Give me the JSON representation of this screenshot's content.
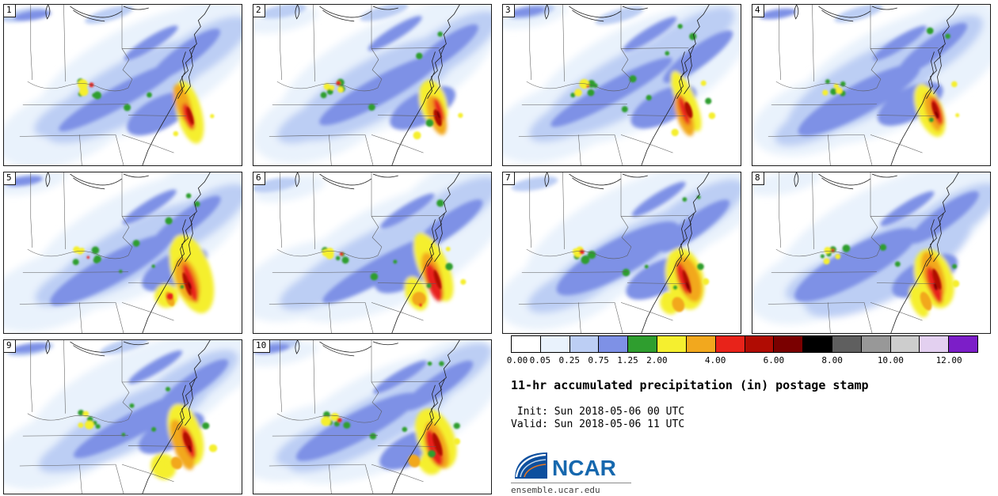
{
  "title": "11-hr accumulated precipitation (in) postage stamp",
  "init_line": " Init: Sun 2018-05-06 00 UTC",
  "valid_line": "Valid: Sun 2018-05-06 11 UTC",
  "footer": {
    "logo_text": "NCAR",
    "site": "ensemble.ucar.edu"
  },
  "panels": [
    {
      "member": "1"
    },
    {
      "member": "2"
    },
    {
      "member": "3"
    },
    {
      "member": "4"
    },
    {
      "member": "5"
    },
    {
      "member": "6"
    },
    {
      "member": "7"
    },
    {
      "member": "8"
    },
    {
      "member": "9"
    },
    {
      "member": "10"
    }
  ],
  "colorbar": {
    "segments": [
      "#ffffff",
      "#e9f2fc",
      "#bccef4",
      "#7e91e6",
      "#2f9e2f",
      "#f5ef2f",
      "#f2a81e",
      "#e8231a",
      "#b00c03",
      "#7a0000",
      "#000000",
      "#5f5f5f",
      "#989898",
      "#cdcdcd",
      "#e3d0f0",
      "#7c1ec8"
    ],
    "ticks": [
      {
        "label": "0.00",
        "boundary": 0
      },
      {
        "label": "0.05",
        "boundary": 1
      },
      {
        "label": "0.25",
        "boundary": 2
      },
      {
        "label": "0.75",
        "boundary": 3
      },
      {
        "label": "1.25",
        "boundary": 4
      },
      {
        "label": "2.00",
        "boundary": 5
      },
      {
        "label": "4.00",
        "boundary": 7
      },
      {
        "label": "6.00",
        "boundary": 9
      },
      {
        "label": "8.00",
        "boundary": 11
      },
      {
        "label": "10.00",
        "boundary": 13
      },
      {
        "label": "12.00",
        "boundary": 15
      }
    ]
  },
  "chart_data": {
    "type": "heatmap",
    "subtype": "ensemble postage-stamp precipitation maps",
    "title": "11-hr accumulated precipitation (in) postage stamp",
    "field": "11-hr accumulated precipitation",
    "units": "in",
    "init_time": "Sun 2018-05-06 00 UTC",
    "valid_time": "Sun 2018-05-06 11 UTC",
    "ensemble_members": [
      "1",
      "2",
      "3",
      "4",
      "5",
      "6",
      "7",
      "8",
      "9",
      "10"
    ],
    "grid_layout": {
      "rows": 3,
      "cols": 4,
      "panels_last_row": 2
    },
    "region": "Eastern United States (Great Lakes / Ohio Valley / Mid-Atlantic / Southeast, Atlantic coast with Chesapeake Bay)",
    "colorbar_tick_values_in": [
      0.0,
      0.05,
      0.25,
      0.75,
      1.25,
      2.0,
      4.0,
      6.0,
      8.0,
      10.0,
      12.0
    ],
    "colorbar_segment_colors": [
      "#ffffff",
      "#e9f2fc",
      "#bccef4",
      "#7e91e6",
      "#2f9e2f",
      "#f5ef2f",
      "#f2a81e",
      "#e8231a",
      "#b00c03",
      "#7a0000",
      "#000000",
      "#5f5f5f",
      "#989898",
      "#cdcdcd",
      "#e3d0f0",
      "#7c1ec8"
    ],
    "legend_position": "bottom-right",
    "qualitative_pattern": "SW-NE oriented precipitation band from Tennessee/Kentucky across the Appalachians to the Mid-Atlantic coast; widespread 0.05-1.25 in (blue shades); embedded convective cores of 2-6+ in (yellow/orange/red with dark-red maxima) near western Virginia / Chesapeake Bay in every member; secondary lighter yellow/green cluster over Kentucky-Tennessee; member-to-member variation in core placement, size and intensity"
  }
}
